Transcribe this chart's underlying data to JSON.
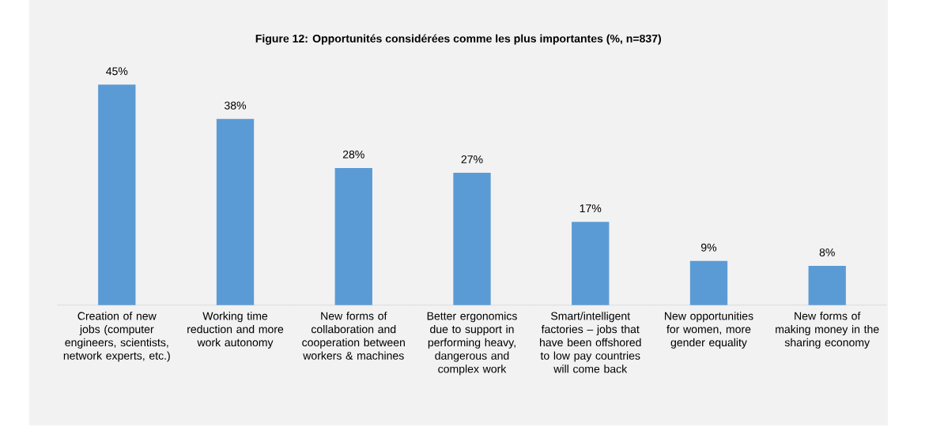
{
  "chart_data": {
    "type": "bar",
    "title": "Figure 12: Opportunités considérées comme les plus importantes (%, n=837)",
    "categories": [
      "Creation of new jobs (computer engineers, scientists, network experts, etc.)",
      "Working time reduction and more work autonomy",
      "New forms of collaboration and cooperation between workers & machines",
      "Better ergonomics due to support in performing heavy, dangerous and complex work",
      "Smart/intelligent factories – jobs that have been offshored to low pay countries will come back",
      "New opportunities for women, more gender equality",
      "New forms of making money in the sharing economy"
    ],
    "values": [
      45,
      38,
      28,
      27,
      17,
      9,
      8
    ],
    "value_labels": [
      "45%",
      "38%",
      "28%",
      "27%",
      "17%",
      "9%",
      "8%"
    ],
    "color": "#5b9bd5"
  }
}
